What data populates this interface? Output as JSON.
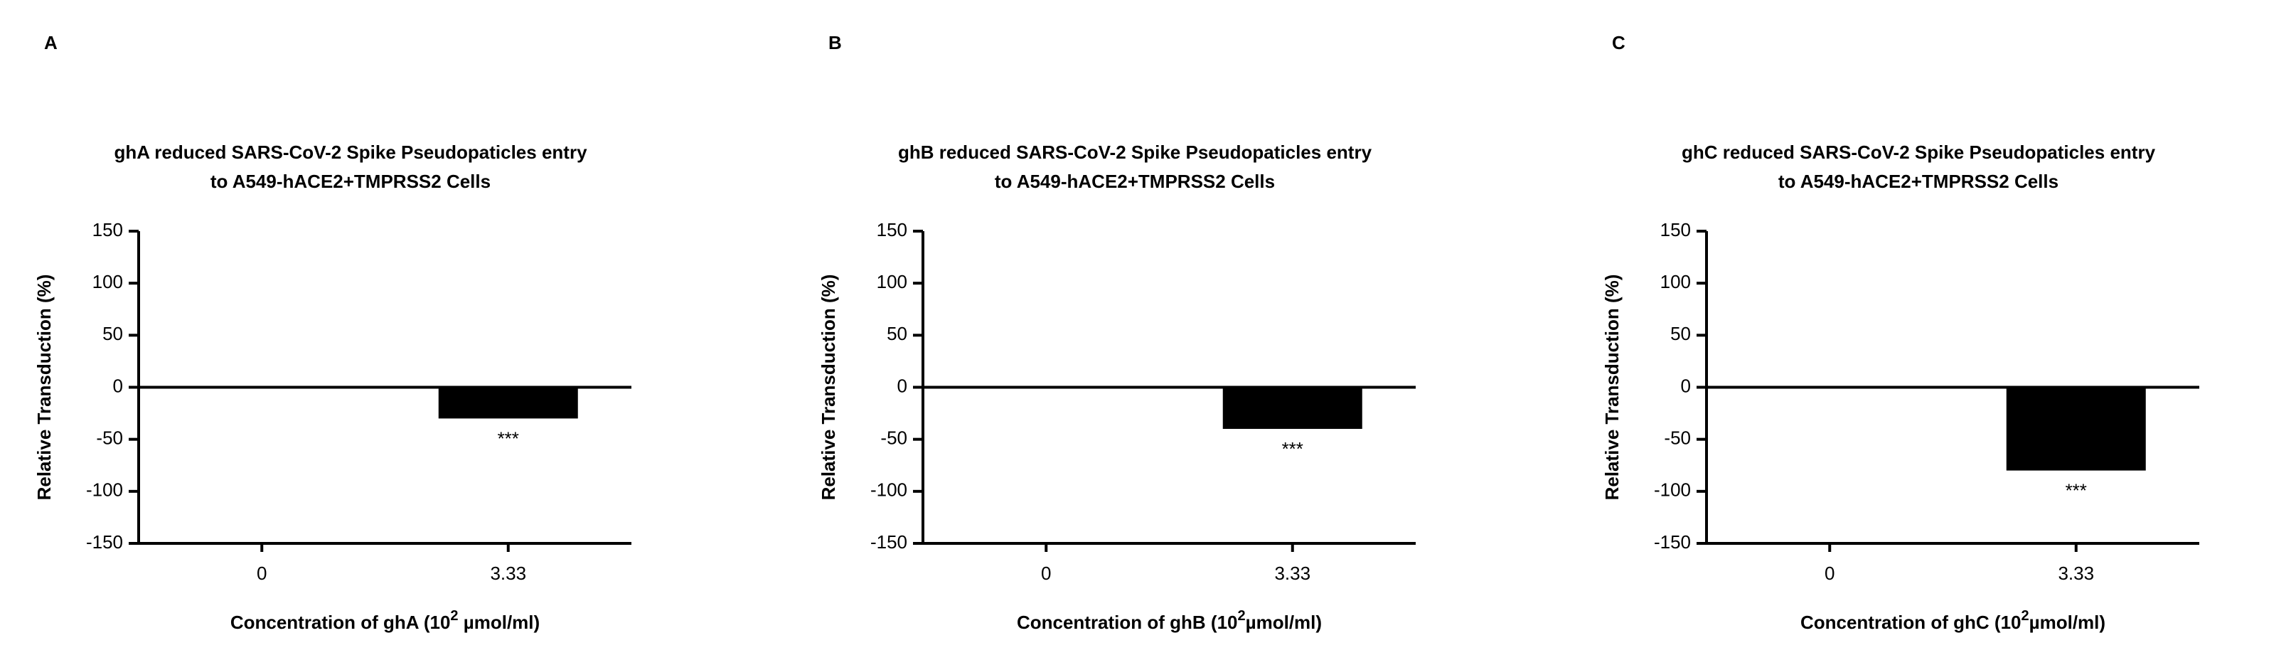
{
  "chart_data": [
    {
      "type": "bar",
      "panel_label": "A",
      "title": [
        "ghA reduced SARS-CoV-2 Spike Pseudopaticles entry",
        "to A549-hACE2+TMPRSS2 Cells"
      ],
      "y_label": "Relative Transduction (%)",
      "x_label": [
        "Concentration of ghA (10",
        "2",
        " µmol/ml)"
      ],
      "categories": [
        "0",
        "3.33"
      ],
      "values": [
        0,
        -30
      ],
      "annotations": [
        null,
        "***"
      ],
      "color": "#000000",
      "ylim": [
        -150,
        150
      ],
      "yticks": [
        -150,
        -100,
        -50,
        0,
        50,
        100,
        150
      ]
    },
    {
      "type": "bar",
      "panel_label": "B",
      "title": [
        "ghB reduced SARS-CoV-2 Spike Pseudopaticles entry",
        "to A549-hACE2+TMPRSS2 Cells"
      ],
      "y_label": "Relative Transduction (%)",
      "x_label": [
        "Concentration of ghB (10",
        "2",
        "µmol/ml)"
      ],
      "categories": [
        "0",
        "3.33"
      ],
      "values": [
        0,
        -40
      ],
      "annotations": [
        null,
        "***"
      ],
      "color": "#000000",
      "ylim": [
        -150,
        150
      ],
      "yticks": [
        -150,
        -100,
        -50,
        0,
        50,
        100,
        150
      ]
    },
    {
      "type": "bar",
      "panel_label": "C",
      "title": [
        "ghC reduced SARS-CoV-2 Spike Pseudopaticles entry",
        "to A549-hACE2+TMPRSS2 Cells"
      ],
      "y_label": "Relative Transduction (%)",
      "x_label": [
        "Concentration of ghC (10",
        "2",
        "µmol/ml)"
      ],
      "categories": [
        "0",
        "3.33"
      ],
      "values": [
        0,
        -80
      ],
      "annotations": [
        null,
        "***"
      ],
      "color": "#000000",
      "ylim": [
        -150,
        150
      ],
      "yticks": [
        -150,
        -100,
        -50,
        0,
        50,
        100,
        150
      ]
    }
  ]
}
